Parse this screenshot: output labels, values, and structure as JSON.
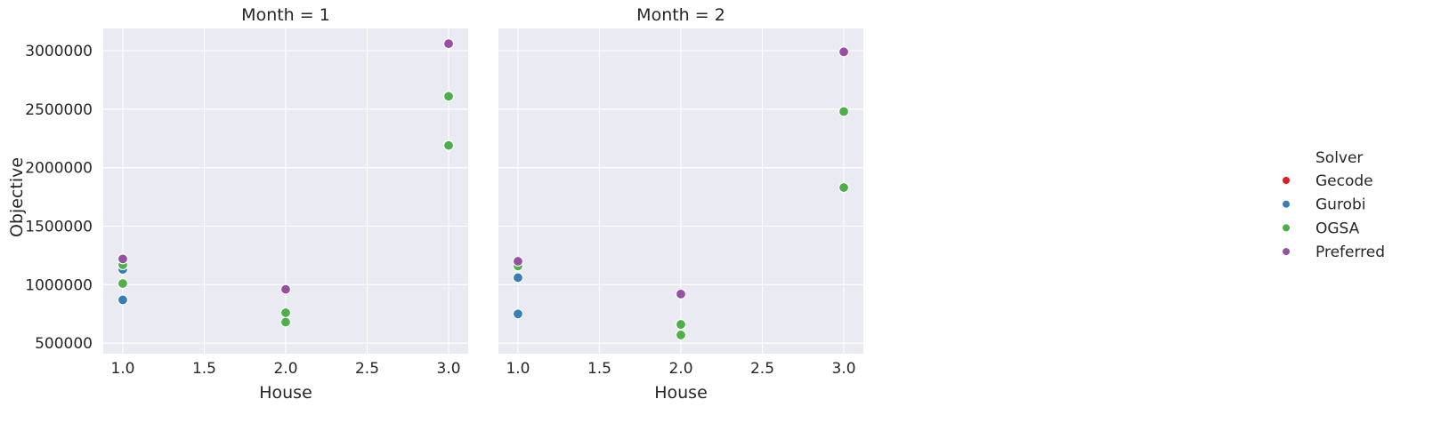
{
  "chart_data": {
    "type": "scatter",
    "ylabel": "Objective",
    "grid": true,
    "legend": {
      "title": "Solver",
      "placement": "right",
      "entries": [
        {
          "name": "Gecode",
          "color": "#e41a1c"
        },
        {
          "name": "Gurobi",
          "color": "#377eb8"
        },
        {
          "name": "OGSA",
          "color": "#4daf4a"
        },
        {
          "name": "Preferred",
          "color": "#984ea3"
        }
      ]
    },
    "xlim": [
      0.88,
      3.12
    ],
    "ylim": [
      410000,
      3190000
    ],
    "x_ticks": [
      1.0,
      1.5,
      2.0,
      2.5,
      3.0
    ],
    "x_tick_labels": [
      "1.0",
      "1.5",
      "2.0",
      "2.5",
      "3.0"
    ],
    "y_ticks": [
      500000,
      1000000,
      1500000,
      2000000,
      2500000,
      3000000
    ],
    "y_tick_labels": [
      "500000",
      "1000000",
      "1500000",
      "2000000",
      "2500000",
      "3000000"
    ],
    "panels": [
      {
        "title": "Month = 1",
        "xlabel": "House",
        "series": [
          {
            "name": "Gecode",
            "points": []
          },
          {
            "name": "Gurobi",
            "points": [
              {
                "x": 1.0,
                "y": 870000
              },
              {
                "x": 1.0,
                "y": 1130000
              }
            ]
          },
          {
            "name": "OGSA",
            "points": [
              {
                "x": 1.0,
                "y": 1010000
              },
              {
                "x": 1.0,
                "y": 1170000
              },
              {
                "x": 2.0,
                "y": 680000
              },
              {
                "x": 2.0,
                "y": 760000
              },
              {
                "x": 3.0,
                "y": 2190000
              },
              {
                "x": 3.0,
                "y": 2610000
              }
            ]
          },
          {
            "name": "Preferred",
            "points": [
              {
                "x": 1.0,
                "y": 1220000
              },
              {
                "x": 2.0,
                "y": 960000
              },
              {
                "x": 3.0,
                "y": 3060000
              }
            ]
          }
        ]
      },
      {
        "title": "Month = 2",
        "xlabel": "House",
        "series": [
          {
            "name": "Gecode",
            "points": []
          },
          {
            "name": "Gurobi",
            "points": [
              {
                "x": 1.0,
                "y": 750000
              },
              {
                "x": 1.0,
                "y": 1060000
              }
            ]
          },
          {
            "name": "OGSA",
            "points": [
              {
                "x": 1.0,
                "y": 1160000
              },
              {
                "x": 2.0,
                "y": 570000
              },
              {
                "x": 2.0,
                "y": 660000
              },
              {
                "x": 3.0,
                "y": 1830000
              },
              {
                "x": 3.0,
                "y": 2480000
              }
            ]
          },
          {
            "name": "Preferred",
            "points": [
              {
                "x": 1.0,
                "y": 1200000
              },
              {
                "x": 2.0,
                "y": 920000
              },
              {
                "x": 3.0,
                "y": 2990000
              }
            ]
          }
        ]
      }
    ]
  }
}
